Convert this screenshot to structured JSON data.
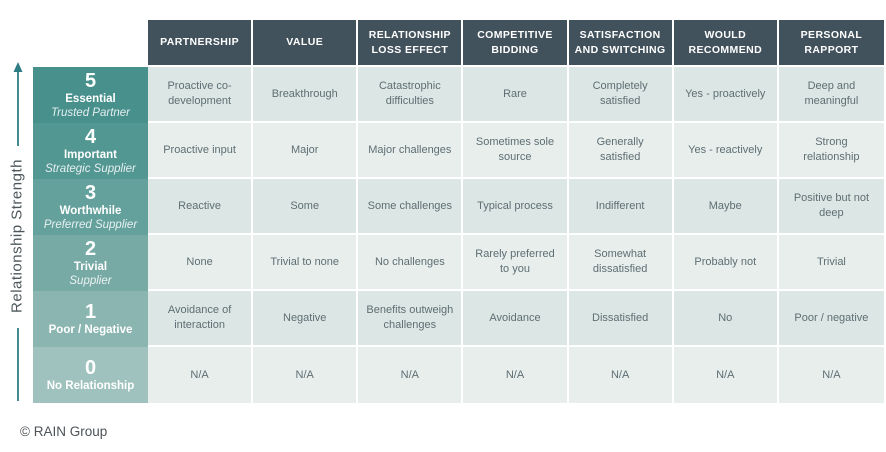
{
  "axis": {
    "label": "Relationship Strength"
  },
  "footer": {
    "copyright": "© RAIN Group"
  },
  "colors": {
    "header_bg": "#42525d",
    "header_text": "#ffffff",
    "row_label_bg": [
      "#47908c",
      "#539793",
      "#64a09c",
      "#77aaa5",
      "#8bb5b1",
      "#a0c2be"
    ],
    "body_row_bg": [
      "#dce6e4",
      "#e8eeec",
      "#dce6e4",
      "#e8eeec",
      "#dce6e4",
      "#e8eeec"
    ],
    "body_text": "#5e6e73",
    "axis_text": "#4d575b",
    "arrow": "#2f7d84",
    "footer_text": "#4d5358"
  },
  "chart_data": {
    "type": "table",
    "title": "Relationship Strength",
    "columns": [
      "PARTNERSHIP",
      "VALUE",
      "RELATIONSHIP LOSS EFFECT",
      "COMPETITIVE BIDDING",
      "SATISFACTION AND SWITCHING",
      "WOULD RECOMMEND",
      "PERSONAL RAPPORT"
    ],
    "rows": [
      {
        "score": "5",
        "name": "Essential",
        "subtitle": "Trusted Partner",
        "cells": [
          "Proactive co-development",
          "Breakthrough",
          "Catastrophic difficulties",
          "Rare",
          "Completely satisfied",
          "Yes - proactively",
          "Deep and meaningful"
        ]
      },
      {
        "score": "4",
        "name": "Important",
        "subtitle": "Strategic Supplier",
        "cells": [
          "Proactive input",
          "Major",
          "Major challenges",
          "Sometimes sole source",
          "Generally satisfied",
          "Yes - reactively",
          "Strong relationship"
        ]
      },
      {
        "score": "3",
        "name": "Worthwhile",
        "subtitle": "Preferred Supplier",
        "cells": [
          "Reactive",
          "Some",
          "Some challenges",
          "Typical process",
          "Indifferent",
          "Maybe",
          "Positive but not deep"
        ]
      },
      {
        "score": "2",
        "name": "Trivial",
        "subtitle": "Supplier",
        "cells": [
          "None",
          "Trivial to none",
          "No challenges",
          "Rarely preferred to you",
          "Somewhat dissatisfied",
          "Probably not",
          "Trivial"
        ]
      },
      {
        "score": "1",
        "name": "Poor / Negative",
        "subtitle": "",
        "cells": [
          "Avoidance of interaction",
          "Negative",
          "Benefits outweigh challenges",
          "Avoidance",
          "Dissatisfied",
          "No",
          "Poor / negative"
        ]
      },
      {
        "score": "0",
        "name": "No Relationship",
        "subtitle": "",
        "cells": [
          "N/A",
          "N/A",
          "N/A",
          "N/A",
          "N/A",
          "N/A",
          "N/A"
        ]
      }
    ]
  }
}
